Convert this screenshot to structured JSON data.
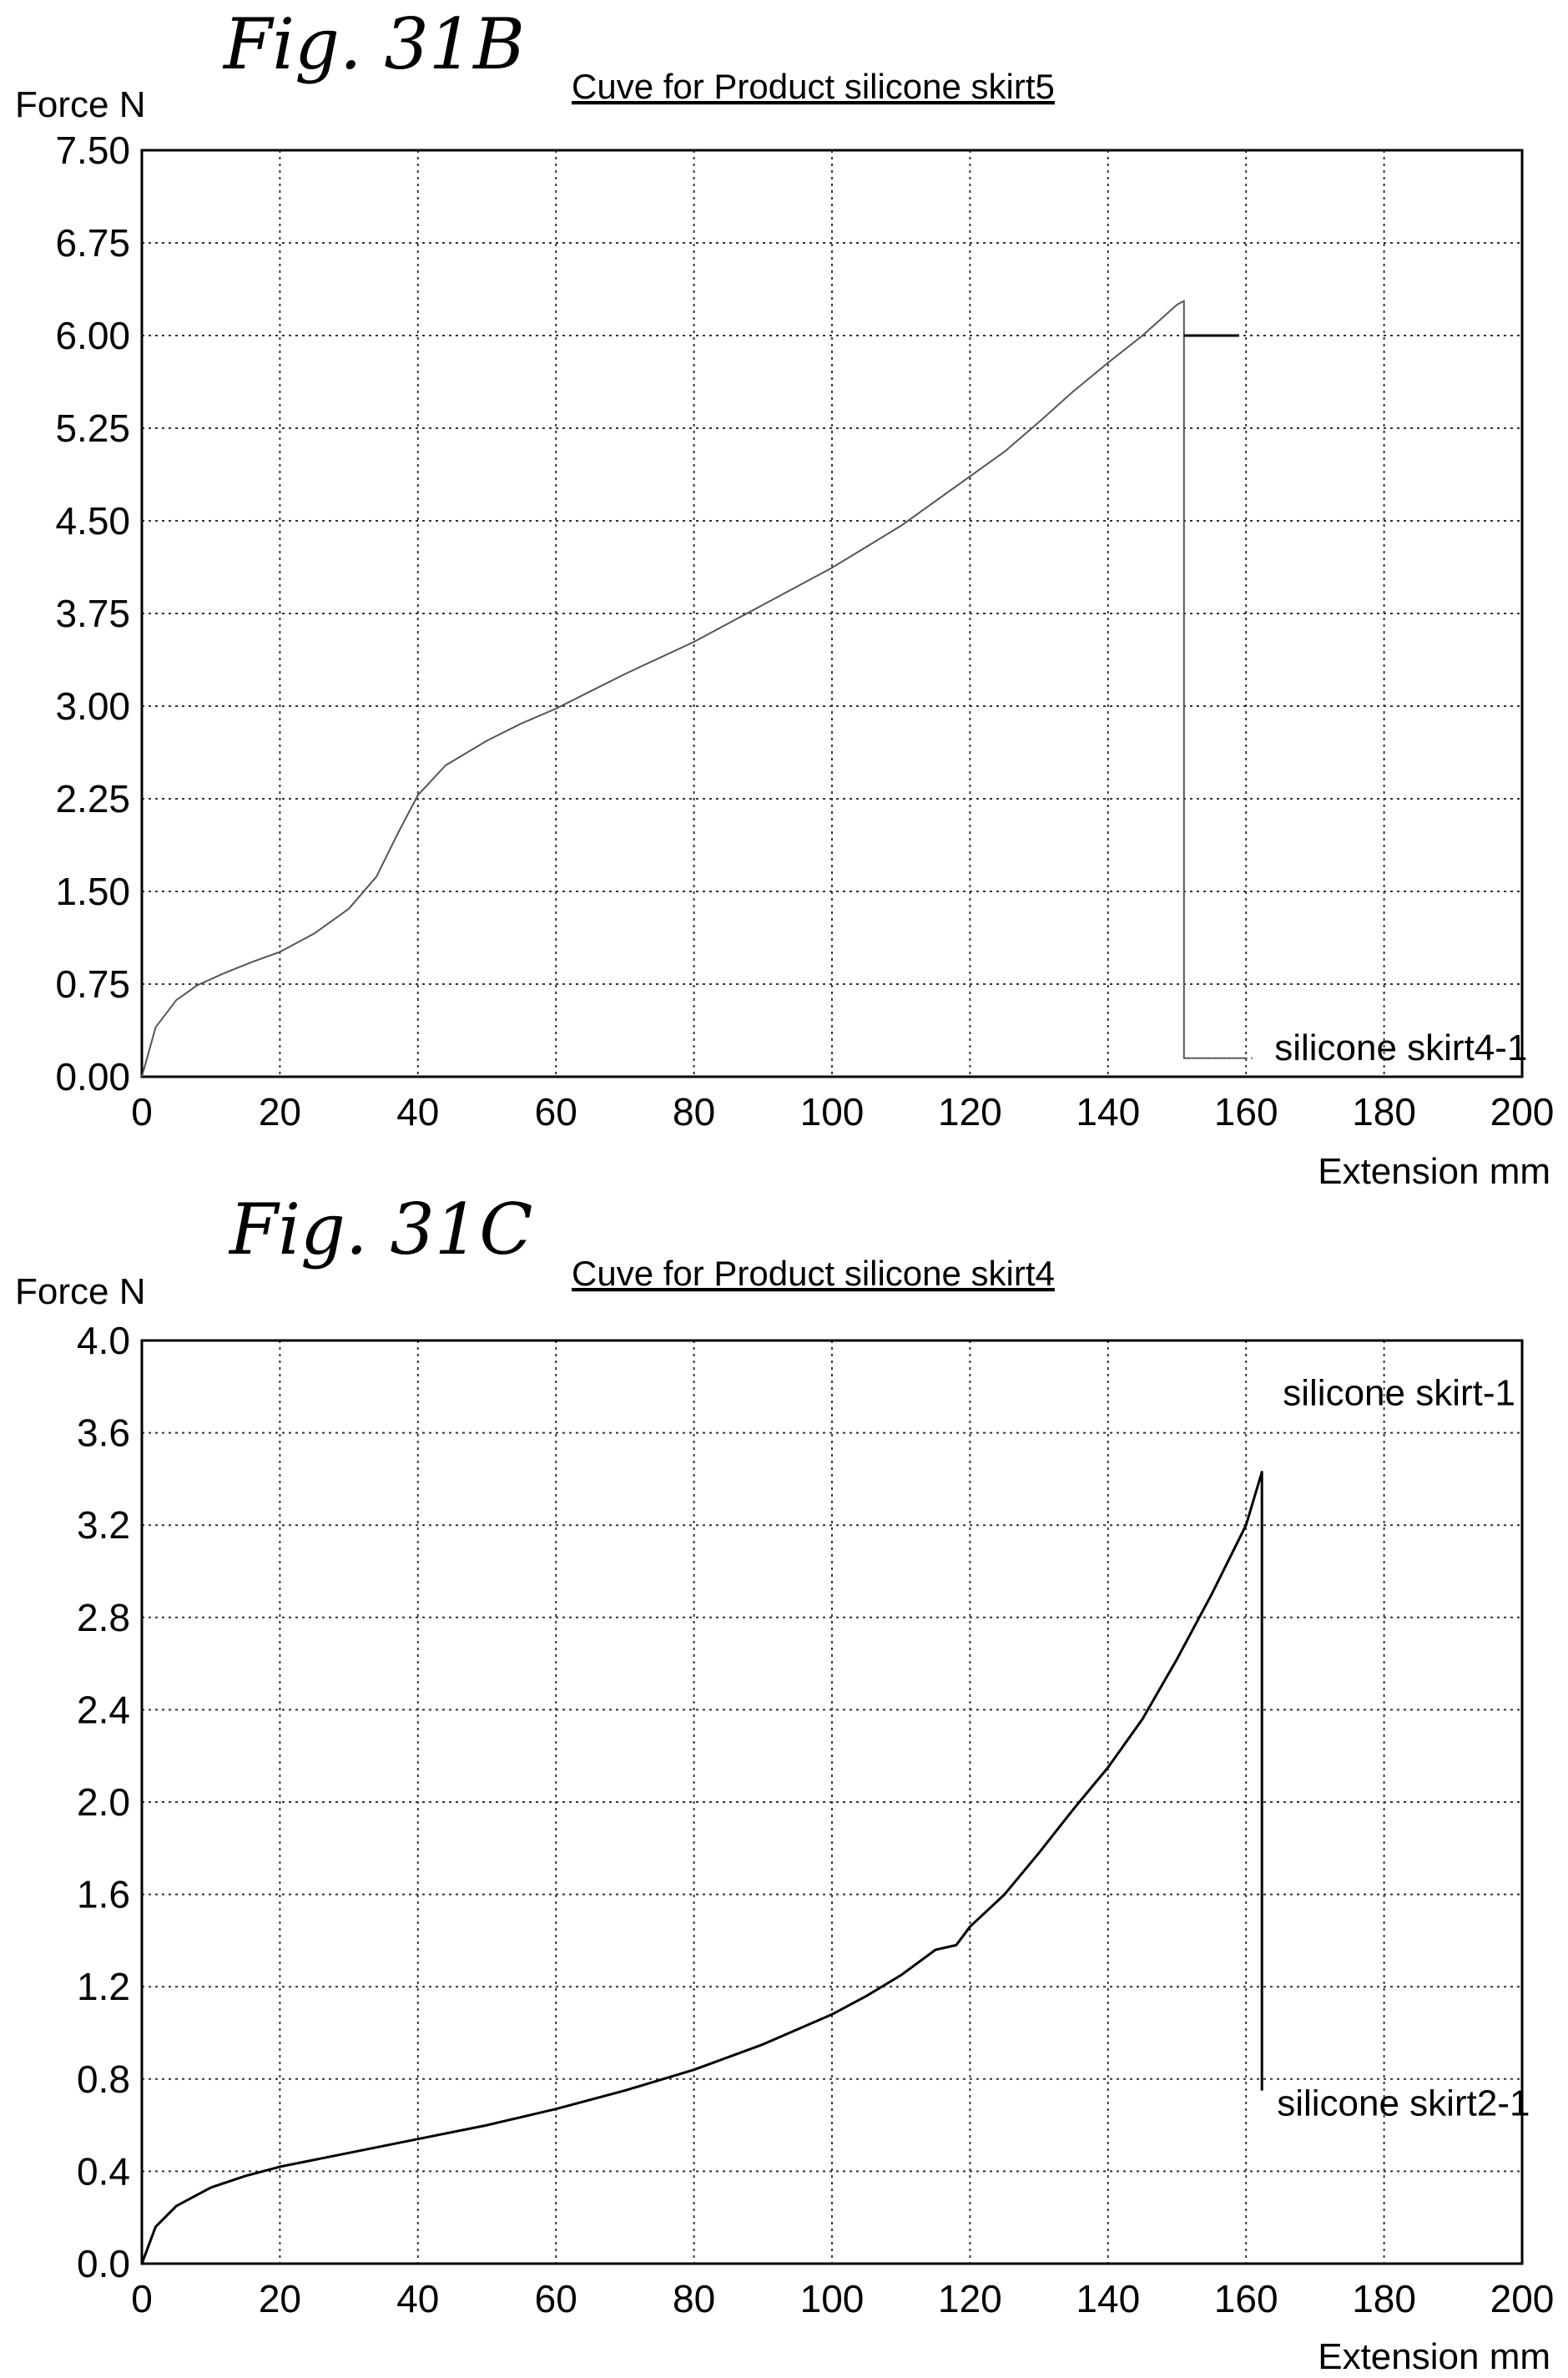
{
  "chart_data": [
    {
      "id": "fig31b",
      "figure_label": "Fig. 31B",
      "type": "line",
      "title": "Cuve for Product silicone skirt5",
      "ylabel": "Force N",
      "xlabel": "Extension mm",
      "xlim": [
        0,
        200
      ],
      "ylim": [
        0,
        7.5
      ],
      "x_ticks": [
        0,
        20,
        40,
        60,
        80,
        100,
        120,
        140,
        160,
        180,
        200
      ],
      "y_ticks": [
        0,
        0.75,
        1.5,
        2.25,
        3.0,
        3.75,
        4.5,
        5.25,
        6.0,
        6.75,
        7.5
      ],
      "x_tick_labels": [
        "0",
        "20",
        "40",
        "60",
        "80",
        "100",
        "120",
        "140",
        "160",
        "180",
        "200"
      ],
      "y_tick_labels": [
        "0.00",
        "0.75",
        "1.50",
        "2.25",
        "3.00",
        "3.75",
        "4.50",
        "5.25",
        "6.00",
        "6.75",
        "7.50"
      ],
      "grid": true,
      "series": [
        {
          "name": "silicone skirt4-1",
          "color": "#555555",
          "x": [
            0,
            2,
            5,
            8,
            12,
            16,
            20,
            25,
            30,
            34,
            37,
            40,
            44,
            50,
            55,
            60,
            65,
            70,
            80,
            90,
            100,
            110,
            120,
            125,
            130,
            135,
            140,
            145,
            150,
            151,
            151,
            152,
            160
          ],
          "y": [
            0,
            0.4,
            0.62,
            0.74,
            0.84,
            0.93,
            1.01,
            1.16,
            1.36,
            1.62,
            1.96,
            2.28,
            2.52,
            2.72,
            2.86,
            2.98,
            3.12,
            3.26,
            3.52,
            3.82,
            4.12,
            4.46,
            4.86,
            5.06,
            5.3,
            5.55,
            5.78,
            6.0,
            6.25,
            6.28,
            0.15,
            0.15,
            0.15
          ]
        },
        {
          "name": "",
          "color": "#000000",
          "x": [
            151,
            159
          ],
          "y": [
            6.0,
            6.0
          ]
        }
      ],
      "legend": [
        {
          "text": "silicone skirt4-1",
          "anchor_x": 160,
          "anchor_y": 0.15
        }
      ]
    },
    {
      "id": "fig31c",
      "figure_label": "Fig. 31C",
      "type": "line",
      "title": "Cuve for Product silicone skirt4",
      "ylabel": "Force N",
      "xlabel": "Extension mm",
      "xlim": [
        0,
        200
      ],
      "ylim": [
        0,
        4.0
      ],
      "x_ticks": [
        0,
        20,
        40,
        60,
        80,
        100,
        120,
        140,
        160,
        180,
        200
      ],
      "y_ticks": [
        0,
        0.4,
        0.8,
        1.2,
        1.6,
        2.0,
        2.4,
        2.8,
        3.2,
        3.6,
        4.0
      ],
      "x_tick_labels": [
        "0",
        "20",
        "40",
        "60",
        "80",
        "100",
        "120",
        "140",
        "160",
        "180",
        "200"
      ],
      "y_tick_labels": [
        "0.0",
        "0.4",
        "0.8",
        "1.2",
        "1.6",
        "2.0",
        "2.4",
        "2.8",
        "3.2",
        "3.6",
        "4.0"
      ],
      "grid": true,
      "series": [
        {
          "name": "silicone skirt2-1",
          "color": "#000000",
          "x": [
            0,
            2,
            5,
            10,
            15,
            20,
            30,
            40,
            50,
            60,
            70,
            80,
            90,
            100,
            105,
            110,
            115,
            118,
            120,
            125,
            130,
            135,
            140,
            145,
            150,
            155,
            160,
            162,
            162.3,
            162.3
          ],
          "y": [
            0,
            0.16,
            0.25,
            0.33,
            0.38,
            0.42,
            0.48,
            0.54,
            0.6,
            0.67,
            0.75,
            0.84,
            0.95,
            1.08,
            1.16,
            1.25,
            1.36,
            1.38,
            1.46,
            1.6,
            1.78,
            1.97,
            2.15,
            2.36,
            2.62,
            2.9,
            3.2,
            3.4,
            3.43,
            0.75
          ]
        }
      ],
      "legend": [
        {
          "text": "silicone skirt-1",
          "anchor_x": 200,
          "anchor_y": 3.9
        },
        {
          "text": "silicone skirt2-1",
          "anchor_x": 162.3,
          "anchor_y": 0.75
        }
      ]
    }
  ]
}
